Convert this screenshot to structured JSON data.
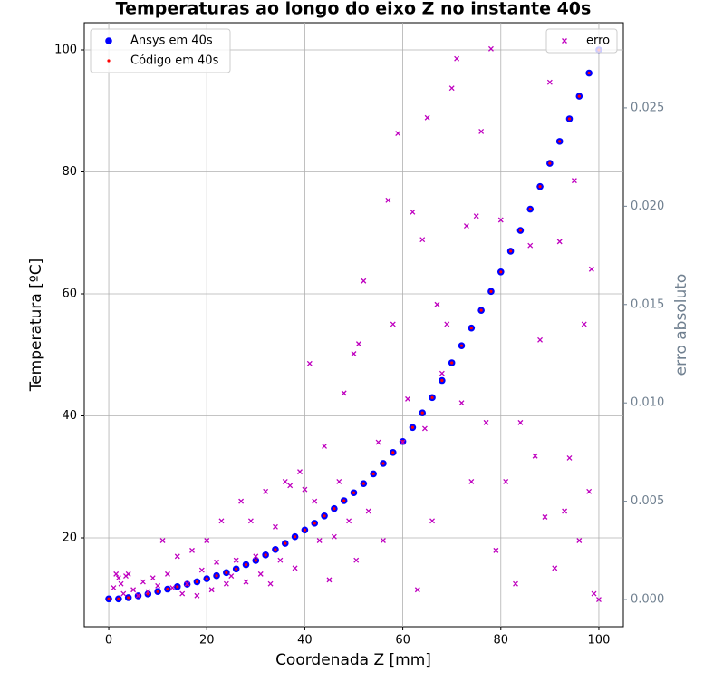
{
  "chart_data": {
    "type": "scatter",
    "title": "Temperaturas ao longo do eixo Z no instante 40s",
    "x_label": "Coordenada Z [mm]",
    "y_label": "Temperatura [ºC]",
    "y2_label": "erro absoluto",
    "xlim": [
      -5,
      105
    ],
    "ylim": [
      5.43,
      104.46
    ],
    "y2lim": [
      -0.00138,
      0.02933
    ],
    "xticks": [
      0,
      20,
      40,
      60,
      80,
      100
    ],
    "yticks": [
      20,
      40,
      60,
      80,
      100
    ],
    "y2ticks": [
      {
        "value": 0,
        "label": "0.000"
      },
      0.005,
      {
        "value": 0.01,
        "label": "0.010"
      },
      0.015,
      {
        "value": 0.02,
        "label": "0.020"
      },
      0.025
    ],
    "grid": true,
    "y2_color": "#708090",
    "legend": "upper left",
    "legend2": "upper right",
    "x": [
      0,
      2,
      4,
      6,
      8,
      10,
      12,
      14,
      16,
      18,
      20,
      22,
      24,
      26,
      28,
      30,
      32,
      34,
      36,
      38,
      40,
      42,
      44,
      46,
      48,
      50,
      52,
      54,
      56,
      58,
      60,
      62,
      64,
      66,
      68,
      70,
      72,
      74,
      76,
      78,
      80,
      82,
      84,
      86,
      88,
      90,
      92,
      94,
      96,
      98,
      100
    ],
    "series": [
      {
        "name": "Ansys em 40s",
        "color": "#0000ff",
        "marker": "dot-large",
        "values": [
          10.0,
          10.0,
          10.2,
          10.5,
          10.8,
          11.2,
          11.6,
          12.0,
          12.4,
          12.8,
          13.3,
          13.8,
          14.3,
          14.9,
          15.6,
          16.3,
          17.2,
          18.1,
          19.1,
          20.2,
          21.3,
          22.4,
          23.6,
          24.8,
          26.1,
          27.4,
          28.9,
          30.5,
          32.2,
          34.0,
          35.8,
          38.1,
          40.5,
          43.0,
          45.8,
          48.7,
          51.5,
          54.4,
          57.3,
          60.4,
          63.6,
          67.0,
          70.4,
          73.9,
          77.6,
          81.4,
          85.0,
          88.7,
          92.4,
          96.2,
          100
        ]
      },
      {
        "name": "Código em 40s",
        "color": "#ff0000",
        "marker": "dot-small",
        "values": [
          10.0,
          10.0,
          10.2,
          10.5,
          10.8,
          11.2,
          11.6,
          12.0,
          12.4,
          12.8,
          13.3,
          13.8,
          14.3,
          14.9,
          15.6,
          16.3,
          17.2,
          18.1,
          19.1,
          20.2,
          21.3,
          22.4,
          23.6,
          24.8,
          26.1,
          27.4,
          28.9,
          30.5,
          32.2,
          34.0,
          35.8,
          38.1,
          40.5,
          43.0,
          45.8,
          48.7,
          51.5,
          54.4,
          57.3,
          60.4,
          63.6,
          67.0,
          70.4,
          73.9,
          77.6,
          81.4,
          85.0,
          88.7,
          92.4,
          96.2,
          100
        ]
      },
      {
        "name": "erro",
        "color": "#bf00bf",
        "marker": "x",
        "axis": "y2",
        "x": [
          1,
          1.5,
          2,
          2.5,
          3,
          3.5,
          4,
          5,
          6,
          7,
          8,
          9,
          10,
          11,
          12,
          13,
          14,
          15,
          16,
          17,
          18,
          19,
          20,
          21,
          22,
          23,
          24,
          25,
          26,
          27,
          28,
          29,
          30,
          31,
          32,
          33,
          34,
          35,
          36,
          37,
          38,
          39,
          40,
          41,
          42,
          43,
          44,
          45,
          46,
          47,
          48,
          49,
          50,
          50.5,
          51,
          52,
          53,
          55,
          56,
          57,
          58,
          59,
          60,
          61,
          62,
          63,
          64,
          64.5,
          65,
          66,
          67,
          68,
          69,
          70,
          71,
          72,
          73,
          74,
          75,
          76,
          77,
          78,
          79,
          80,
          81,
          83,
          84,
          86,
          87,
          88,
          89,
          90,
          91,
          92,
          93,
          94,
          95,
          96,
          97,
          98,
          98.5,
          99,
          100
        ],
        "values": [
          0.0006,
          0.0013,
          0.0011,
          0.0008,
          0.0003,
          0.0012,
          0.0013,
          0.0005,
          0.0002,
          0.0009,
          0.0004,
          0.0011,
          0.0007,
          0.003,
          0.0013,
          0.0006,
          0.0022,
          0.0003,
          0.0008,
          0.0025,
          0.0002,
          0.0015,
          0.003,
          0.0005,
          0.0019,
          0.004,
          0.0008,
          0.0012,
          0.002,
          0.005,
          0.0009,
          0.004,
          0.0022,
          0.0013,
          0.0055,
          0.0008,
          0.0037,
          0.002,
          0.006,
          0.0058,
          0.0016,
          0.0065,
          0.0056,
          0.012,
          0.005,
          0.003,
          0.0078,
          0.001,
          0.0032,
          0.006,
          0.0105,
          0.004,
          0.0125,
          0.002,
          0.013,
          0.0162,
          0.0045,
          0.008,
          0.003,
          0.0203,
          0.014,
          0.0237,
          0.008,
          0.0102,
          0.0197,
          0.0005,
          0.0183,
          0.0087,
          0.0245,
          0.004,
          0.015,
          0.0115,
          0.014,
          0.026,
          0.0275,
          0.01,
          0.019,
          0.006,
          0.0195,
          0.0238,
          0.009,
          0.028,
          0.0025,
          0.0193,
          0.006,
          0.0008,
          0.009,
          0.018,
          0.0073,
          0.0132,
          0.0042,
          0.0263,
          0.0016,
          0.0182,
          0.0045,
          0.0072,
          0.0213,
          0.003,
          0.014,
          0.0055,
          0.0168,
          0.0003,
          0.0
        ]
      }
    ]
  }
}
